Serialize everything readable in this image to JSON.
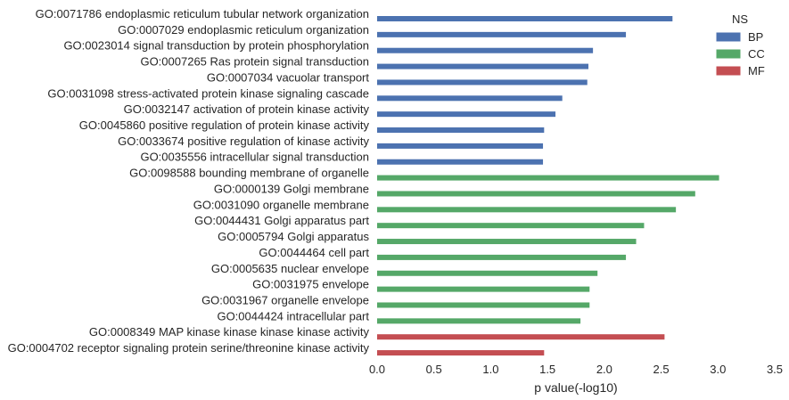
{
  "chart_data": {
    "type": "bar",
    "orientation": "horizontal",
    "title": "",
    "xlabel": "p value(-log10)",
    "ylabel": "",
    "xlim": [
      0,
      3.5
    ],
    "xticks": [
      "0.0",
      "0.5",
      "1.0",
      "1.5",
      "2.0",
      "2.5",
      "3.0",
      "3.5"
    ],
    "grid": false,
    "legend": {
      "title": "NS",
      "position": "top-right",
      "entries": [
        {
          "label": "BP",
          "color": "#4c72b0"
        },
        {
          "label": "CC",
          "color": "#55a868"
        },
        {
          "label": "MF",
          "color": "#c44e52"
        }
      ]
    },
    "bars": [
      {
        "label": "GO:0071786 endoplasmic reticulum tubular network organization",
        "ns": "BP",
        "value": 2.6
      },
      {
        "label": "GO:0007029 endoplasmic reticulum organization",
        "ns": "BP",
        "value": 2.19
      },
      {
        "label": "GO:0023014 signal transduction by protein phosphorylation",
        "ns": "BP",
        "value": 1.9
      },
      {
        "label": "GO:0007265 Ras protein signal transduction",
        "ns": "BP",
        "value": 1.86
      },
      {
        "label": "GO:0007034 vacuolar transport",
        "ns": "BP",
        "value": 1.85
      },
      {
        "label": "GO:0031098 stress-activated protein kinase signaling cascade",
        "ns": "BP",
        "value": 1.63
      },
      {
        "label": "GO:0032147 activation of protein kinase activity",
        "ns": "BP",
        "value": 1.57
      },
      {
        "label": "GO:0045860 positive regulation of protein kinase activity",
        "ns": "BP",
        "value": 1.47
      },
      {
        "label": "GO:0033674 positive regulation of kinase activity",
        "ns": "BP",
        "value": 1.46
      },
      {
        "label": "GO:0035556 intracellular signal transduction",
        "ns": "BP",
        "value": 1.46
      },
      {
        "label": "GO:0098588 bounding membrane of organelle",
        "ns": "CC",
        "value": 3.01
      },
      {
        "label": "GO:0000139 Golgi membrane",
        "ns": "CC",
        "value": 2.8
      },
      {
        "label": "GO:0031090 organelle membrane",
        "ns": "CC",
        "value": 2.63
      },
      {
        "label": "GO:0044431 Golgi apparatus part",
        "ns": "CC",
        "value": 2.35
      },
      {
        "label": "GO:0005794 Golgi apparatus",
        "ns": "CC",
        "value": 2.28
      },
      {
        "label": "GO:0044464 cell part",
        "ns": "CC",
        "value": 2.19
      },
      {
        "label": "GO:0005635 nuclear envelope",
        "ns": "CC",
        "value": 1.94
      },
      {
        "label": "GO:0031975 envelope",
        "ns": "CC",
        "value": 1.87
      },
      {
        "label": "GO:0031967 organelle envelope",
        "ns": "CC",
        "value": 1.87
      },
      {
        "label": "GO:0044424 intracellular part",
        "ns": "CC",
        "value": 1.79
      },
      {
        "label": "GO:0008349 MAP kinase kinase kinase kinase activity",
        "ns": "MF",
        "value": 2.53
      },
      {
        "label": "GO:0004702 receptor signaling protein serine/threonine kinase activity",
        "ns": "MF",
        "value": 1.47
      }
    ]
  }
}
